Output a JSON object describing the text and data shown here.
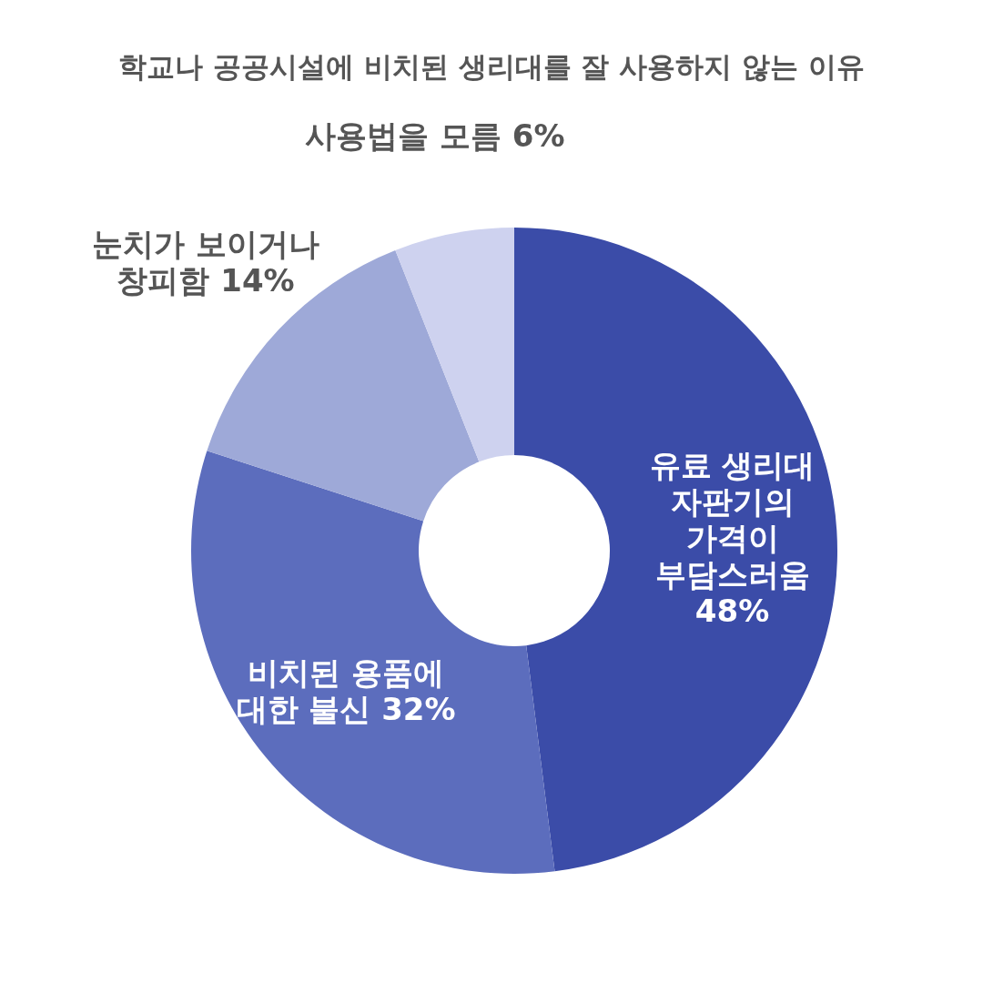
{
  "chart_data": {
    "type": "donut",
    "title": "학교나 공공시설에 비치된 생리대를 잘 사용하지 않는 이유",
    "categories": [
      "유료 생리대\n자판기의\n가격이\n부담스러움",
      "비치된 용품에\n대한 불신",
      "눈치가 보이거나\n창피함",
      "사용법을 모름"
    ],
    "values": [
      48,
      32,
      14,
      6
    ],
    "colors": [
      "#3b4ca8",
      "#5c6dbd",
      "#9ea9d8",
      "#ced2ef"
    ],
    "value_labels": [
      "48%",
      "32%",
      "14%",
      "6%"
    ]
  }
}
